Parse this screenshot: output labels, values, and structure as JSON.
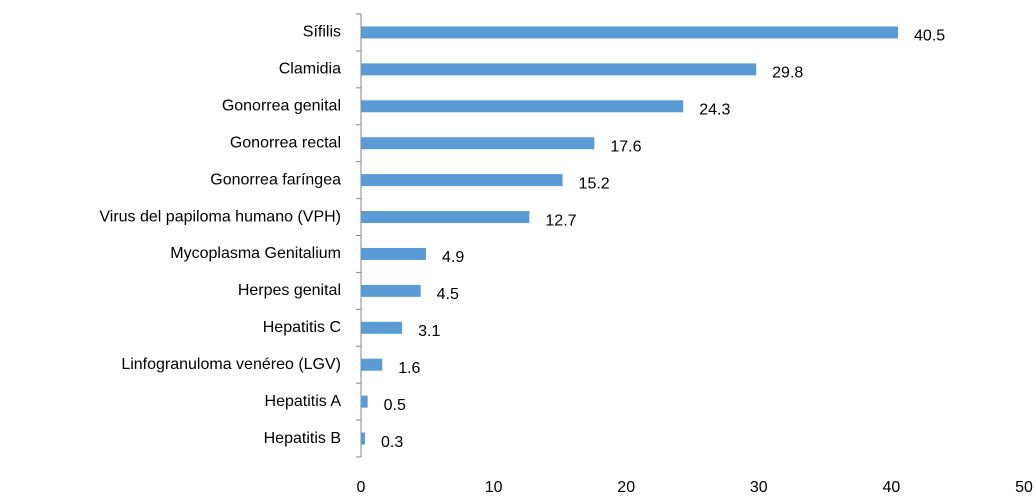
{
  "chart_data": {
    "type": "bar",
    "orientation": "horizontal",
    "categories": [
      "Sífilis",
      "Clamidia",
      "Gonorrea genital",
      "Gonorrea rectal",
      "Gonorrea faríngea",
      "Virus del papiloma humano (VPH)",
      "Mycoplasma Genitalium",
      "Herpes genital",
      "Hepatitis C",
      "Linfogranuloma venéreo (LGV)",
      "Hepatitis A",
      "Hepatitis B"
    ],
    "values": [
      40.5,
      29.8,
      24.3,
      17.6,
      15.2,
      12.7,
      4.9,
      4.5,
      3.1,
      1.6,
      0.5,
      0.3
    ],
    "color": "#5b9bd5",
    "xlim": [
      0,
      50
    ],
    "xticks": [
      0,
      10,
      20,
      30,
      40,
      50
    ],
    "grid": false
  }
}
